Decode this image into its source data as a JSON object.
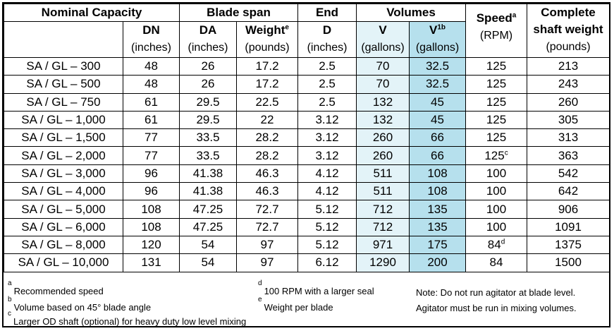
{
  "header": {
    "nominal_capacity": "Nominal Capacity",
    "blade_span": "Blade span",
    "end": "End",
    "volumes": "Volumes",
    "speed": "Speed",
    "speed_sup": "a",
    "complete": "Complete",
    "shaft_weight": "shaft weight",
    "dn": "DN",
    "da": "DA",
    "weight": "Weight",
    "weight_sup": "e",
    "d": "D",
    "v": "V",
    "v1": "V",
    "v1_sup": "1b",
    "rpm": "(RPM)",
    "pounds_shaft": "(pounds)",
    "inches_dn": "(inches)",
    "inches_da": "(inches)",
    "pounds_weight": "(pounds)",
    "inches_d": "(inches)",
    "gallons_v": "(gallons)",
    "gallons_v1": "(gallons)"
  },
  "rows": [
    {
      "capacity": "SA / GL – 300",
      "dn": "48",
      "da": "26",
      "weight": "17.2",
      "d": "2.5",
      "v": "70",
      "v1": "32.5",
      "speed": "125",
      "speed_sup": "",
      "shaft": "213"
    },
    {
      "capacity": "SA / GL – 500",
      "dn": "48",
      "da": "26",
      "weight": "17.2",
      "d": "2.5",
      "v": "70",
      "v1": "32.5",
      "speed": "125",
      "speed_sup": "",
      "shaft": "243"
    },
    {
      "capacity": "SA / GL – 750",
      "dn": "61",
      "da": "29.5",
      "weight": "22.5",
      "d": "2.5",
      "v": "132",
      "v1": "45",
      "speed": "125",
      "speed_sup": "",
      "shaft": "260"
    },
    {
      "capacity": "SA / GL – 1,000",
      "dn": "61",
      "da": "29.5",
      "weight": "22",
      "d": "3.12",
      "v": "132",
      "v1": "45",
      "speed": "125",
      "speed_sup": "",
      "shaft": "305"
    },
    {
      "capacity": "SA / GL – 1,500",
      "dn": "77",
      "da": "33.5",
      "weight": "28.2",
      "d": "3.12",
      "v": "260",
      "v1": "66",
      "speed": "125",
      "speed_sup": "",
      "shaft": "313"
    },
    {
      "capacity": "SA / GL – 2,000",
      "dn": "77",
      "da": "33.5",
      "weight": "28.2",
      "d": "3.12",
      "v": "260",
      "v1": "66",
      "speed": "125",
      "speed_sup": "c",
      "shaft": "363"
    },
    {
      "capacity": "SA / GL – 3,000",
      "dn": "96",
      "da": "41.38",
      "weight": "46.3",
      "d": "4.12",
      "v": "511",
      "v1": "108",
      "speed": "100",
      "speed_sup": "",
      "shaft": "542"
    },
    {
      "capacity": "SA / GL – 4,000",
      "dn": "96",
      "da": "41.38",
      "weight": "46.3",
      "d": "4.12",
      "v": "511",
      "v1": "108",
      "speed": "100",
      "speed_sup": "",
      "shaft": "642"
    },
    {
      "capacity": "SA / GL – 5,000",
      "dn": "108",
      "da": "47.25",
      "weight": "72.7",
      "d": "5.12",
      "v": "712",
      "v1": "135",
      "speed": "100",
      "speed_sup": "",
      "shaft": "906"
    },
    {
      "capacity": "SA / GL – 6,000",
      "dn": "108",
      "da": "47.25",
      "weight": "72.7",
      "d": "5.12",
      "v": "712",
      "v1": "135",
      "speed": "100",
      "speed_sup": "",
      "shaft": "1091"
    },
    {
      "capacity": "SA / GL – 8,000",
      "dn": "120",
      "da": "54",
      "weight": "97",
      "d": "5.12",
      "v": "971",
      "v1": "175",
      "speed": "84",
      "speed_sup": "d",
      "shaft": "1375"
    },
    {
      "capacity": "SA / GL – 10,000",
      "dn": "131",
      "da": "54",
      "weight": "97",
      "d": "6.12",
      "v": "1290",
      "v1": "200",
      "speed": "84",
      "speed_sup": "",
      "shaft": "1500"
    }
  ],
  "footnotes": {
    "a_mark": "a",
    "a_text": "Recommended speed",
    "b_mark": "b",
    "b_text": "Volume based on 45° blade angle",
    "c_mark": "c",
    "c_text": "Larger OD shaft (optional) for heavy duty low level mixing",
    "d_mark": "d",
    "d_text": "100 RPM with a larger seal",
    "e_mark": "e",
    "e_text": "Weight per blade",
    "note1": "Note: Do not run agitator at blade level.",
    "note2": "Agitator must be run in mixing volumes."
  },
  "colors": {
    "v_column": "#e3f3f8",
    "v1_column": "#b6e0ed",
    "border": "#000000"
  }
}
